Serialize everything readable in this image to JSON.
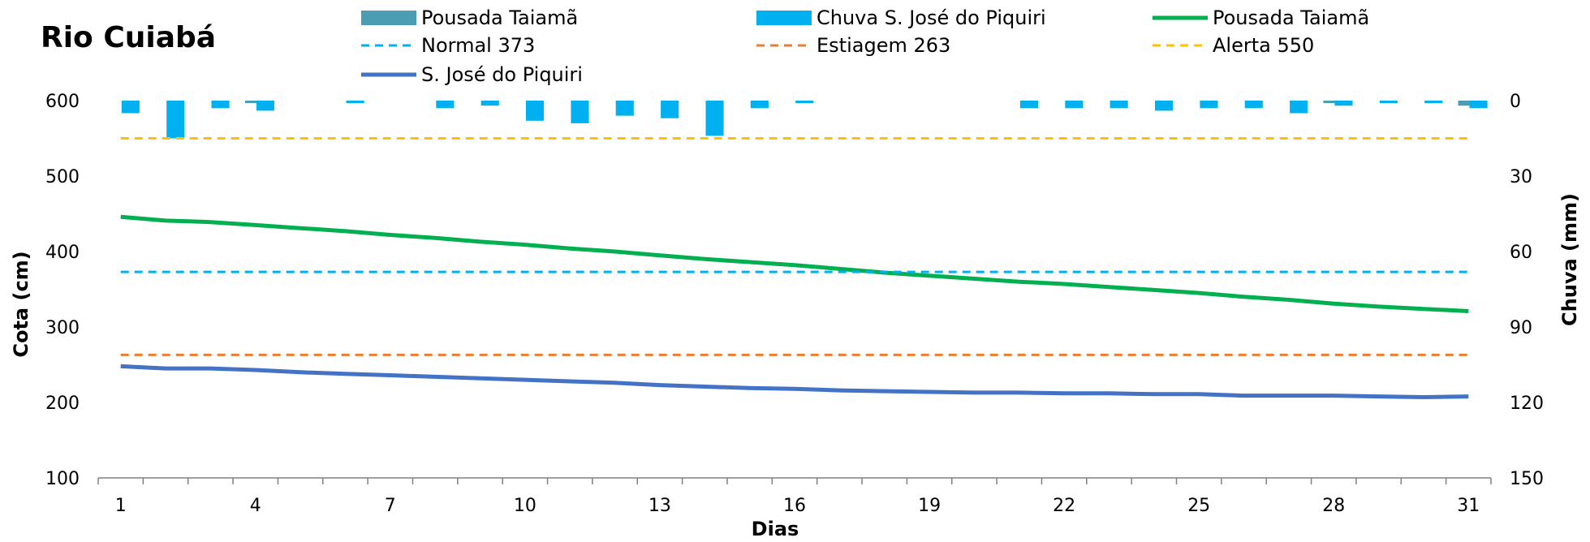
{
  "chart_data": {
    "type": "line",
    "title": "Rio Cuiabá",
    "xlabel": "Dias",
    "ylabel_left": "Cota  (cm)",
    "ylabel_right": "Chuva (mm)",
    "ylim_left": [
      100,
      600
    ],
    "ylim_right": [
      150,
      0
    ],
    "yticks_left": [
      100,
      200,
      300,
      400,
      500,
      600
    ],
    "yticks_right": [
      150,
      120,
      90,
      60,
      30,
      0
    ],
    "xticks": [
      1,
      4,
      7,
      10,
      13,
      16,
      19,
      22,
      25,
      28,
      31
    ],
    "x": [
      1,
      2,
      3,
      4,
      5,
      6,
      7,
      8,
      9,
      10,
      11,
      12,
      13,
      14,
      15,
      16,
      17,
      18,
      19,
      20,
      21,
      22,
      23,
      24,
      25,
      26,
      27,
      28,
      29,
      30,
      31
    ],
    "legend_position": "top",
    "series": [
      {
        "name": "Pousada Taiamã",
        "kind": "bar",
        "axis": "right",
        "color": "#4a9db3",
        "values": [
          0,
          0,
          0,
          1,
          0,
          0,
          0,
          0,
          0,
          0,
          0,
          0,
          0,
          0,
          0,
          0,
          0,
          0,
          0,
          0,
          0,
          0,
          0,
          0,
          0,
          0,
          0,
          1,
          0,
          0,
          2
        ]
      },
      {
        "name": "Chuva S. José do Piquiri",
        "kind": "bar",
        "axis": "right",
        "color": "#00b0f0",
        "values": [
          5,
          15,
          3,
          4,
          0,
          1,
          0,
          3,
          2,
          8,
          9,
          6,
          7,
          14,
          3,
          1,
          0,
          0,
          0,
          0,
          3,
          3,
          3,
          4,
          3,
          3,
          5,
          2,
          1,
          1,
          3
        ]
      },
      {
        "name": "Pousada Taiamã",
        "kind": "line",
        "axis": "left",
        "color": "#00b050",
        "values": [
          446,
          441,
          439,
          435,
          431,
          427,
          422,
          418,
          413,
          409,
          404,
          400,
          395,
          390,
          386,
          382,
          377,
          372,
          368,
          364,
          360,
          357,
          353,
          349,
          345,
          340,
          336,
          331,
          327,
          324,
          321
        ]
      },
      {
        "name": "Normal  373",
        "kind": "dashed",
        "axis": "left",
        "color": "#00b0f0",
        "values": [
          373,
          373,
          373,
          373,
          373,
          373,
          373,
          373,
          373,
          373,
          373,
          373,
          373,
          373,
          373,
          373,
          373,
          373,
          373,
          373,
          373,
          373,
          373,
          373,
          373,
          373,
          373,
          373,
          373,
          373,
          373
        ]
      },
      {
        "name": "Estiagem 263",
        "kind": "dashed",
        "axis": "left",
        "color": "#ed7d31",
        "values": [
          263,
          263,
          263,
          263,
          263,
          263,
          263,
          263,
          263,
          263,
          263,
          263,
          263,
          263,
          263,
          263,
          263,
          263,
          263,
          263,
          263,
          263,
          263,
          263,
          263,
          263,
          263,
          263,
          263,
          263,
          263
        ]
      },
      {
        "name": "Alerta 550",
        "kind": "dashed",
        "axis": "left",
        "color": "#ffc000",
        "values": [
          550,
          550,
          550,
          550,
          550,
          550,
          550,
          550,
          550,
          550,
          550,
          550,
          550,
          550,
          550,
          550,
          550,
          550,
          550,
          550,
          550,
          550,
          550,
          550,
          550,
          550,
          550,
          550,
          550,
          550,
          550
        ]
      },
      {
        "name": "S. José do Piquiri",
        "kind": "line",
        "axis": "left",
        "color": "#4472c4",
        "values": [
          248,
          245,
          245,
          243,
          240,
          238,
          236,
          234,
          232,
          230,
          228,
          226,
          223,
          221,
          219,
          218,
          216,
          215,
          214,
          213,
          213,
          212,
          212,
          211,
          211,
          209,
          209,
          209,
          208,
          207,
          208
        ]
      }
    ]
  }
}
